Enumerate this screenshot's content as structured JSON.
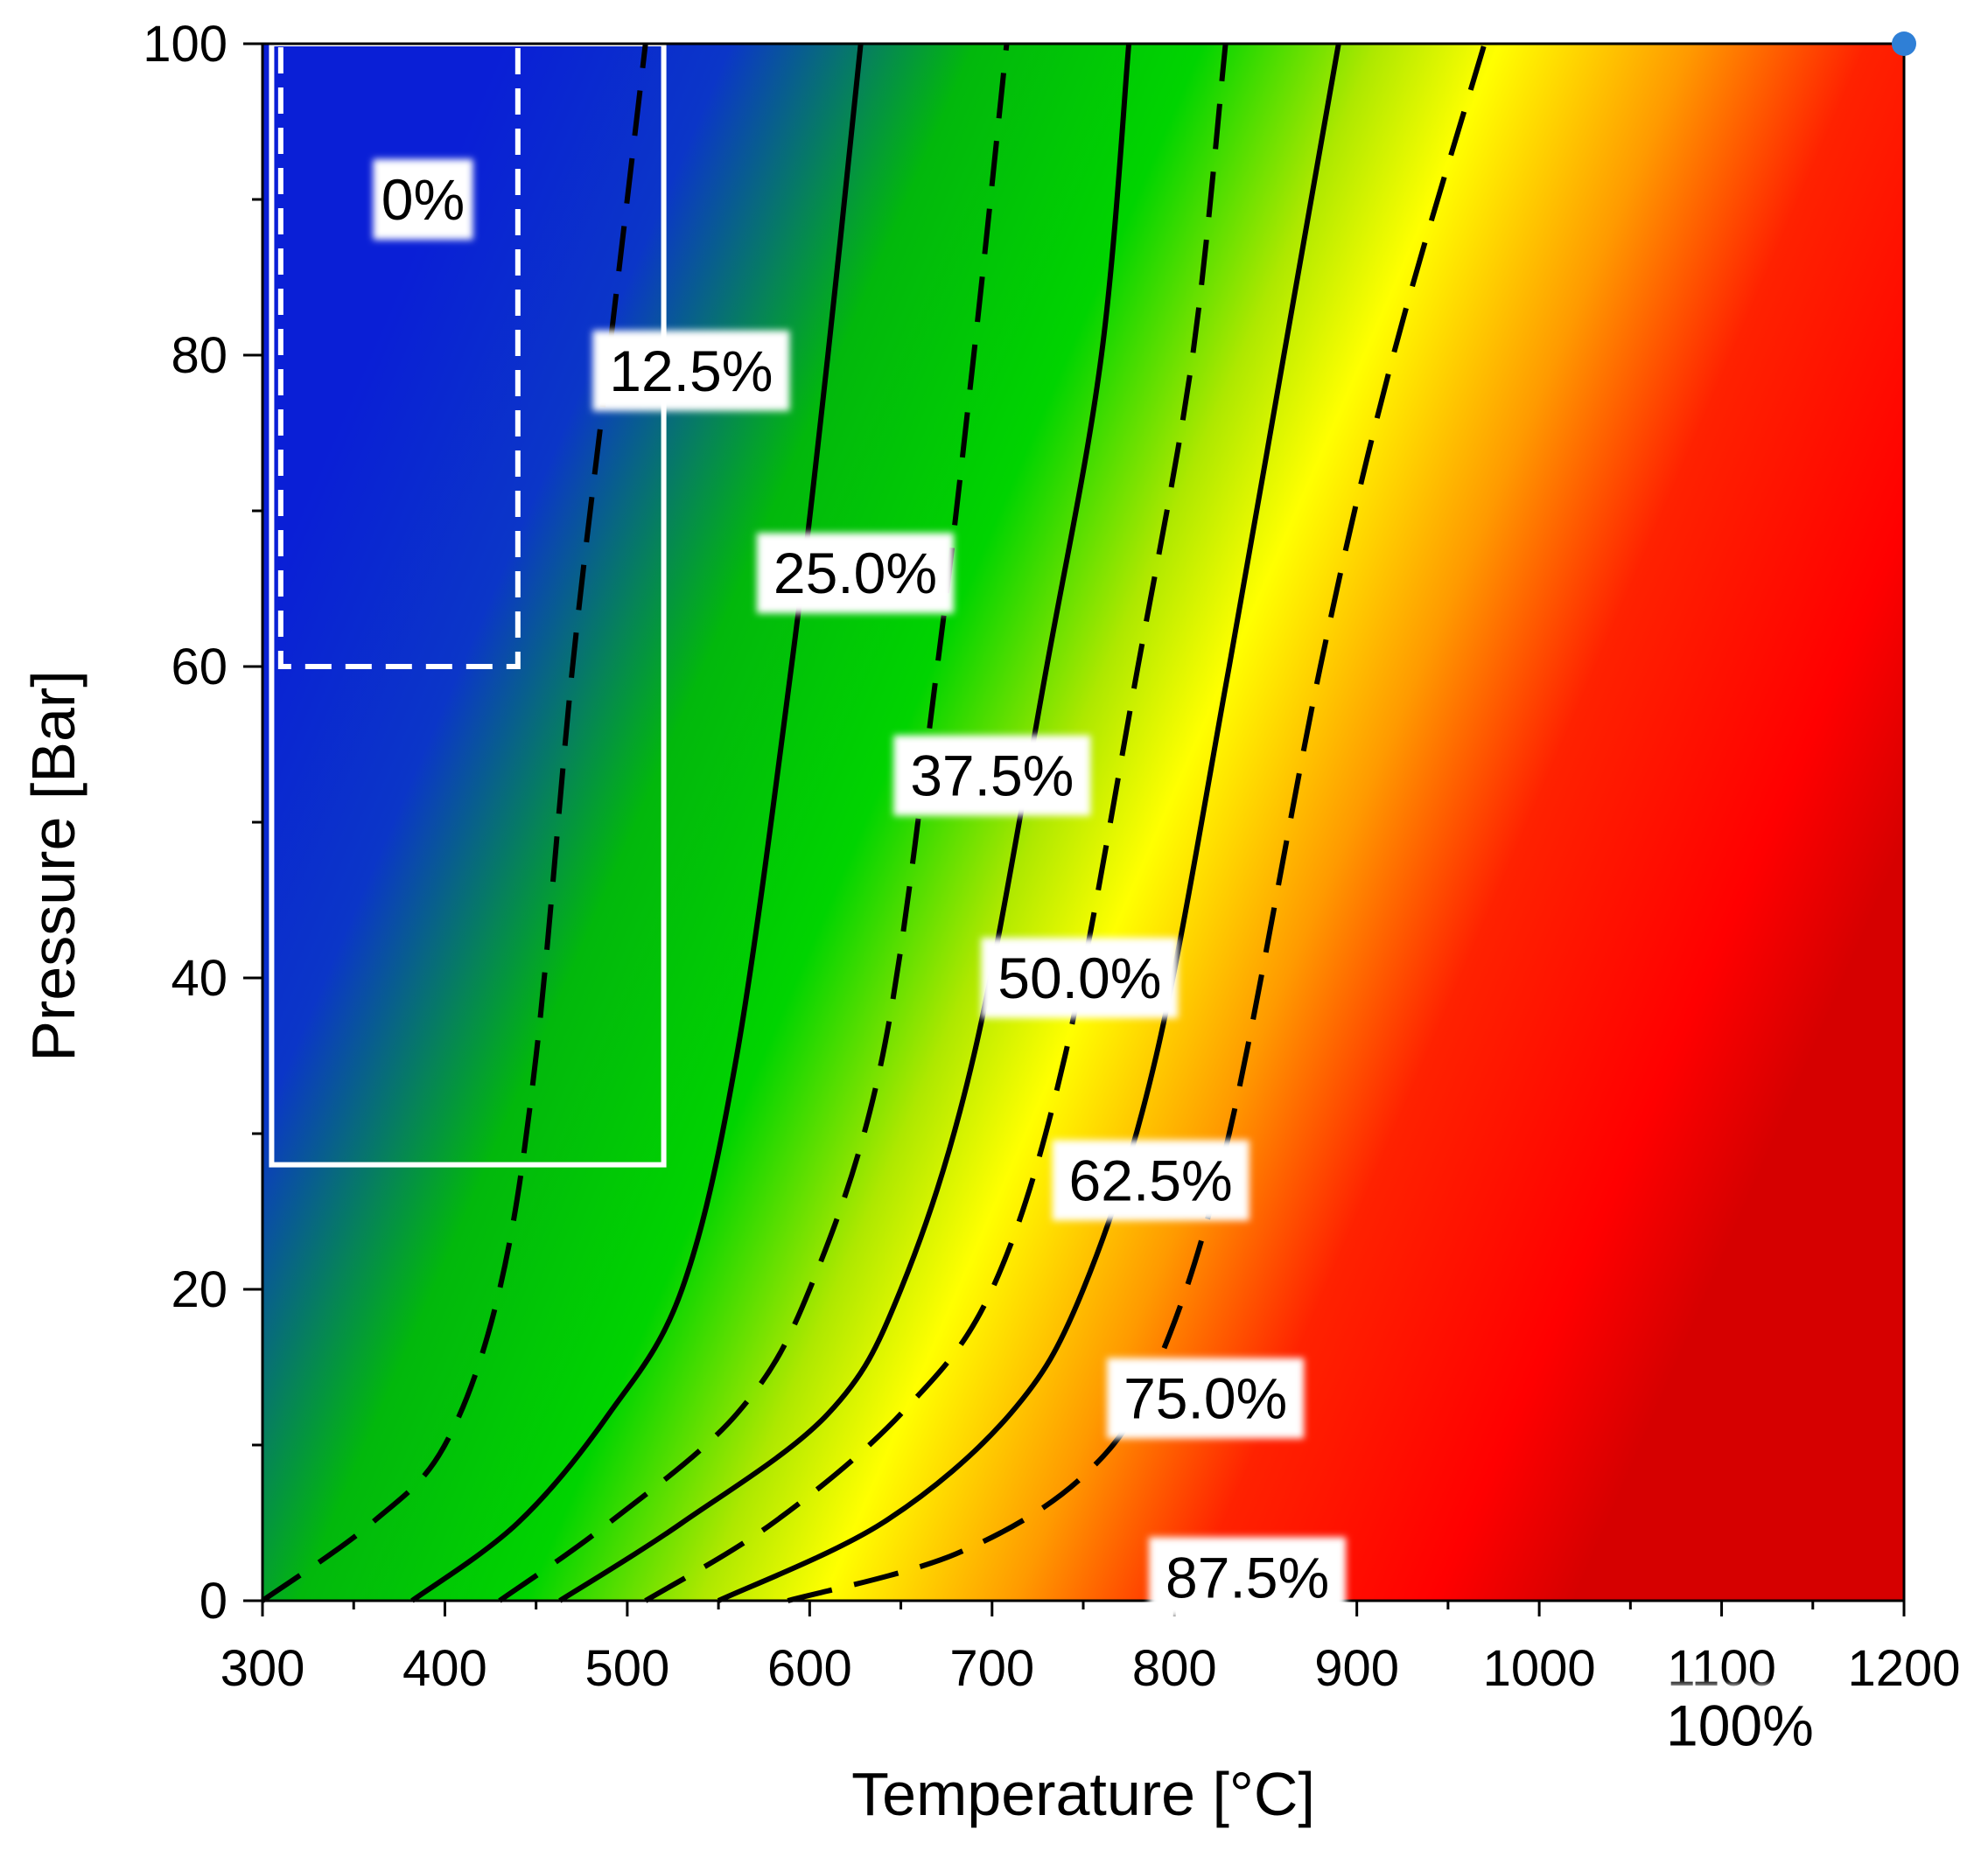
{
  "chart_data": {
    "type": "heatmap",
    "title": "",
    "xlabel": "Temperature [°C]",
    "ylabel": "Pressure [Bar]",
    "xlim": [
      300,
      1200
    ],
    "ylim": [
      0,
      100
    ],
    "x_ticks": [
      "300",
      "400",
      "500",
      "600",
      "700",
      "800",
      "900",
      "1000",
      "1100",
      "1200"
    ],
    "y_ticks": [
      "0",
      "20",
      "40",
      "60",
      "80",
      "100"
    ],
    "colorscale": [
      "#0a1fd6",
      "#00d400",
      "#ffff00",
      "#ff0000",
      "#d80000"
    ],
    "contours": [
      {
        "label": "12.5%",
        "style": "dashed",
        "points": [
          [
            300,
            0
          ],
          [
            360,
            5
          ],
          [
            400,
            10
          ],
          [
            430,
            20
          ],
          [
            450,
            35
          ],
          [
            470,
            60
          ],
          [
            490,
            80
          ],
          [
            510,
            100
          ]
        ]
      },
      {
        "label": "25.0%",
        "style": "solid",
        "points": [
          [
            382,
            0
          ],
          [
            440,
            5
          ],
          [
            490,
            12
          ],
          [
            530,
            20
          ],
          [
            560,
            35
          ],
          [
            590,
            60
          ],
          [
            610,
            80
          ],
          [
            628,
            100
          ]
        ]
      },
      {
        "label": "37.5%",
        "style": "dashed",
        "points": [
          [
            430,
            0
          ],
          [
            490,
            5
          ],
          [
            560,
            12
          ],
          [
            600,
            20
          ],
          [
            640,
            35
          ],
          [
            670,
            60
          ],
          [
            690,
            80
          ],
          [
            708,
            100
          ]
        ]
      },
      {
        "label": "50.0%",
        "style": "solid",
        "points": [
          [
            463,
            0
          ],
          [
            530,
            5
          ],
          [
            610,
            12
          ],
          [
            650,
            20
          ],
          [
            690,
            35
          ],
          [
            730,
            60
          ],
          [
            760,
            80
          ],
          [
            775,
            100
          ]
        ]
      },
      {
        "label": "62.5%",
        "style": "dashed",
        "points": [
          [
            510,
            0
          ],
          [
            580,
            5
          ],
          [
            650,
            12
          ],
          [
            700,
            20
          ],
          [
            740,
            35
          ],
          [
            780,
            60
          ],
          [
            810,
            80
          ],
          [
            828,
            100
          ]
        ]
      },
      {
        "label": "75.0%",
        "style": "solid",
        "points": [
          [
            550,
            0
          ],
          [
            640,
            5
          ],
          [
            710,
            12
          ],
          [
            750,
            20
          ],
          [
            790,
            35
          ],
          [
            830,
            60
          ],
          [
            860,
            80
          ],
          [
            890,
            100
          ]
        ]
      },
      {
        "label": "87.5%",
        "style": "dashed",
        "points": [
          [
            588,
            0
          ],
          [
            680,
            3
          ],
          [
            750,
            8
          ],
          [
            790,
            15
          ],
          [
            830,
            30
          ],
          [
            880,
            60
          ],
          [
            920,
            80
          ],
          [
            970,
            100
          ]
        ]
      }
    ],
    "region_labels": [
      "0%",
      "100%"
    ],
    "boxes": [
      {
        "style": "solid-white",
        "x": [
          305,
          520
        ],
        "y": [
          28,
          100
        ]
      },
      {
        "style": "dashed-white",
        "x": [
          310,
          440
        ],
        "y": [
          60,
          100
        ]
      }
    ],
    "marker": {
      "x": 1200,
      "y": 100,
      "color": "#2f7fd6"
    }
  }
}
